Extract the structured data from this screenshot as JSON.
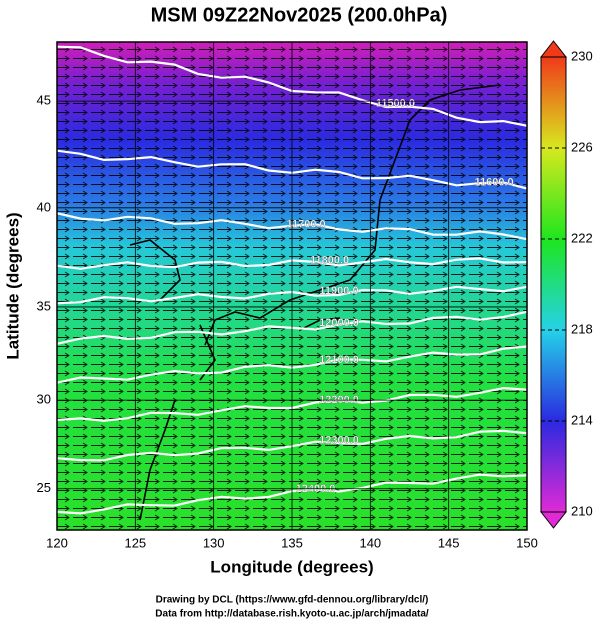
{
  "chart_data": {
    "type": "map",
    "title": "MSM 09Z22Nov2025 (200.0hPa)",
    "xlabel": "Longitude (degrees)",
    "ylabel": "Latitude  (degrees)",
    "projection": "mercator",
    "xlim": [
      120,
      150
    ],
    "ylim": [
      22.6,
      47.6
    ],
    "xticks": [
      120,
      125,
      130,
      135,
      140,
      145,
      150
    ],
    "yticks": [
      25,
      30,
      35,
      40,
      45
    ],
    "colorbar": {
      "lim": [
        210,
        230
      ],
      "ticks": [
        210,
        214,
        218,
        222,
        226,
        230
      ],
      "colors": [
        "#e02ad6",
        "#2a2ae0",
        "#24d2e8",
        "#1ee61e",
        "#d8e81e",
        "#f03a1a"
      ]
    },
    "contours": [
      {
        "value": 11500,
        "label": "11500.0",
        "lat_west": 47.4,
        "lat_east": 43.8
      },
      {
        "value": 11600,
        "label": "11600.0",
        "lat_west": 42.6,
        "lat_east": 41.0
      },
      {
        "value": 11700,
        "label": "11700.0",
        "lat_west": 39.6,
        "lat_east": 38.6
      },
      {
        "value": 11800,
        "label": "11800.0",
        "lat_west": 37.1,
        "lat_east": 37.4
      },
      {
        "value": 11900,
        "label": "11900.0",
        "lat_west": 35.3,
        "lat_east": 36.0
      },
      {
        "value": 12000,
        "label": "12000.0",
        "lat_west": 33.2,
        "lat_east": 34.6
      },
      {
        "value": 12100,
        "label": "12100.0",
        "lat_west": 31.0,
        "lat_east": 32.8
      },
      {
        "value": 12200,
        "label": "12200.0",
        "lat_west": 28.8,
        "lat_east": 30.6
      },
      {
        "value": 12300,
        "label": "12300.0",
        "lat_west": 26.6,
        "lat_east": 28.3
      },
      {
        "value": 12400,
        "label": "12400.0",
        "lat_west": 23.6,
        "lat_east": 25.9
      }
    ],
    "credits": [
      "Drawing by DCL (https://www.gfd-dennou.org/library/dcl/)",
      "Data from http://database.rish.kyoto-u.ac.jp/arch/jmadata/"
    ]
  }
}
